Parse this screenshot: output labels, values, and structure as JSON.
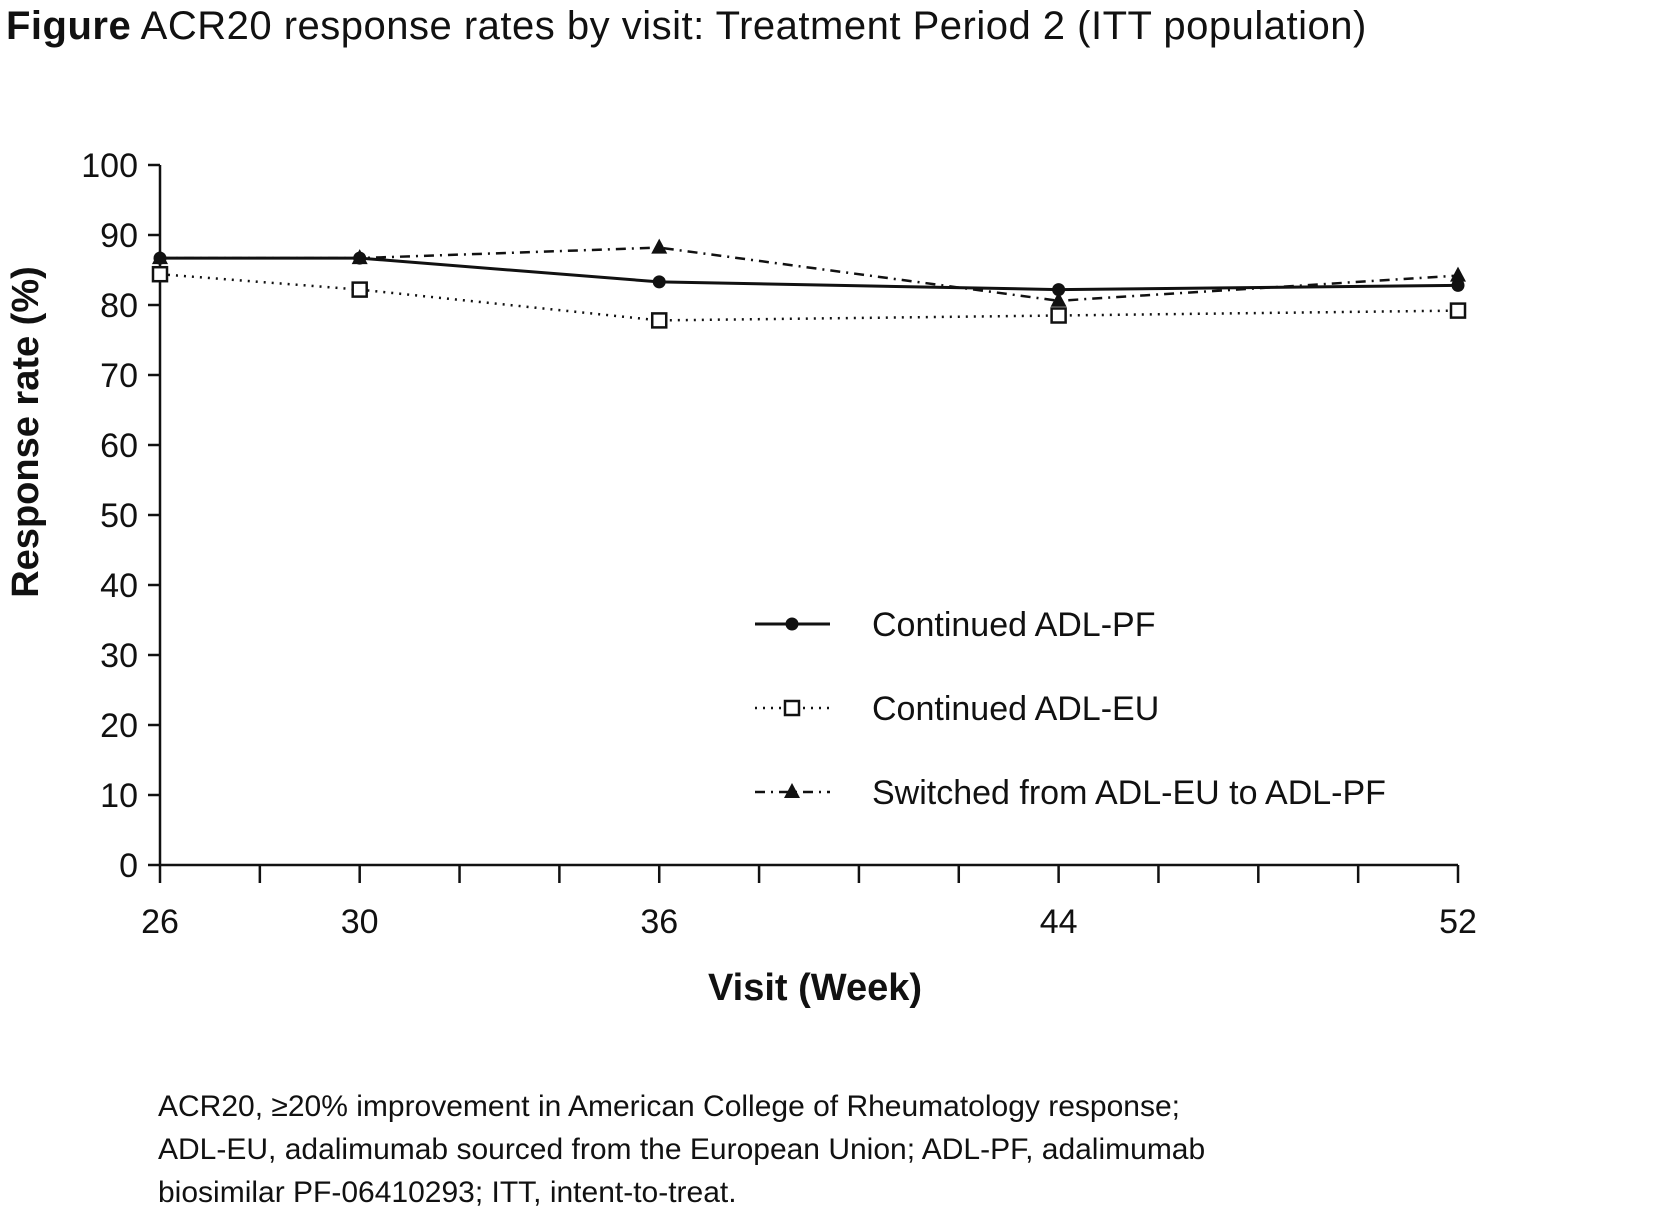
{
  "title": {
    "lead": "Figure",
    "rest": "ACR20 response rates by visit: Treatment Period 2 (ITT population)"
  },
  "chart_data": {
    "type": "line",
    "title": "ACR20 response rates by visit: Treatment Period 2 (ITT population)",
    "xlabel": "Visit (Week)",
    "ylabel": "Response rate (%)",
    "xlim": [
      26,
      52
    ],
    "ylim": [
      0,
      100
    ],
    "yticks": [
      0,
      10,
      20,
      30,
      40,
      50,
      60,
      70,
      80,
      90,
      100
    ],
    "xticks_labeled": [
      26,
      30,
      36,
      44,
      52
    ],
    "xticks_minor": [
      28,
      32,
      34,
      38,
      40,
      42,
      46,
      48,
      50
    ],
    "x": [
      26,
      30,
      36,
      44,
      52
    ],
    "series": [
      {
        "name": "Continued ADL-PF",
        "values": [
          86.7,
          86.7,
          83.3,
          82.2,
          82.8
        ],
        "line": "solid",
        "marker": "filled-circle"
      },
      {
        "name": "Continued ADL-EU",
        "values": [
          84.4,
          82.2,
          77.8,
          78.5,
          79.2
        ],
        "line": "dotted",
        "marker": "open-square"
      },
      {
        "name": "Switched from ADL-EU to ADL-PF",
        "values": [
          86.7,
          86.7,
          88.2,
          80.6,
          84.2
        ],
        "line": "dash-dot",
        "marker": "filled-triangle"
      }
    ],
    "legend_position": "lower-right",
    "grid": false
  },
  "footnote": "ACR20, ≥20% improvement in American College of Rheumatology response;\nADL-EU, adalimumab sourced from the European Union; ADL-PF, adalimumab\nbiosimilar PF-06410293; ITT, intent-to-treat.",
  "colors": {
    "ink": "#111111",
    "background": "#ffffff"
  }
}
